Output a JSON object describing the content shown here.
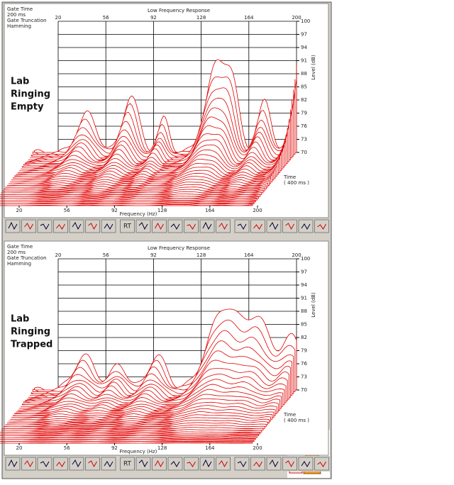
{
  "panels": [
    {
      "gate_labels": [
        "Gate Time",
        "200 ms",
        "Gate Truncation",
        "Hamming"
      ],
      "title": "Low Frequency Response",
      "side_label": [
        "Lab",
        "Ringing",
        "Empty"
      ],
      "top_ticks": [
        20,
        56,
        92,
        128,
        164,
        200
      ],
      "bottom_ticks": [
        20,
        56,
        92,
        128,
        164,
        200
      ],
      "level_ticks": [
        100,
        97,
        94,
        91,
        88,
        85,
        82,
        79,
        76,
        73,
        70
      ],
      "level_label": "Level (dB)",
      "x_label": "Frequency (Hz)",
      "time_label": [
        "Time",
        "( 400 ms )"
      ],
      "toolbar_text": "RT"
    },
    {
      "gate_labels": [
        "Gate Time",
        "200 ms",
        "Gate Truncation",
        "Hamming"
      ],
      "title": "Low Frequency Response",
      "side_label": [
        "Lab",
        "Ringing",
        "Trapped"
      ],
      "top_ticks": [
        20,
        56,
        92,
        128,
        164,
        200
      ],
      "bottom_ticks": [
        20,
        56,
        92,
        128,
        164,
        200
      ],
      "level_ticks": [
        100,
        97,
        94,
        91,
        88,
        85,
        82,
        79,
        76,
        73,
        70
      ],
      "level_label": "Level (dB)",
      "x_label": "Frequency (Hz)",
      "time_label": [
        "Time",
        "( 400 ms )"
      ],
      "toolbar_text": "RT"
    }
  ]
}
